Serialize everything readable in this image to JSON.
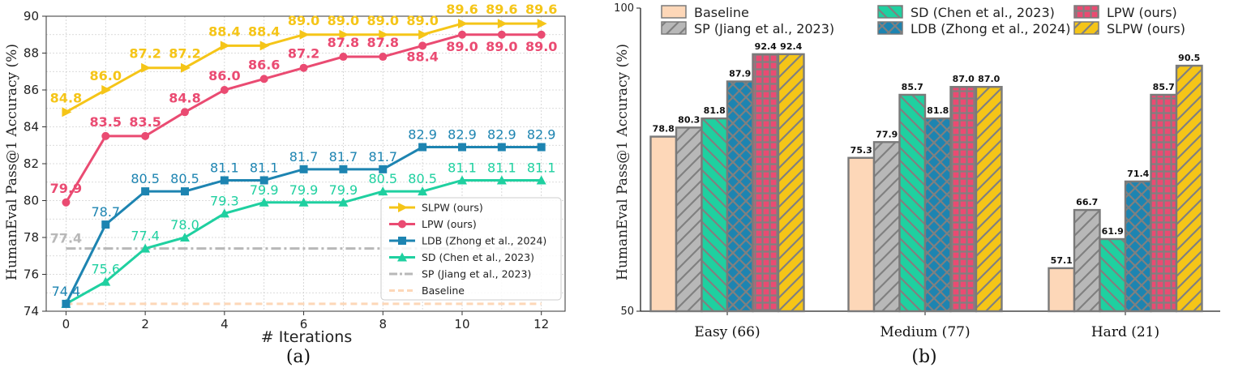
{
  "chart_data": [
    {
      "type": "line",
      "caption": "(a)",
      "xlabel": "# Iterations",
      "ylabel": "HumanEval Pass@1 Accuracy (%)",
      "xlim": [
        -0.5,
        12.6
      ],
      "ylim": [
        74,
        90
      ],
      "xticks": [
        "0",
        "2",
        "4",
        "6",
        "8",
        "10",
        "12"
      ],
      "yticks": [
        "74",
        "76",
        "78",
        "80",
        "82",
        "84",
        "86",
        "88",
        "90"
      ],
      "grid": true,
      "legend_position": "lower-right",
      "x": [
        0,
        1,
        2,
        3,
        4,
        5,
        6,
        7,
        8,
        9,
        10,
        11,
        12
      ],
      "series": [
        {
          "name": "SLPW (ours)",
          "color": "#f5c518",
          "marker": "arrow-right",
          "bold_labels": true,
          "values": [
            84.8,
            86.0,
            87.2,
            87.2,
            88.4,
            88.4,
            89.0,
            89.0,
            89.0,
            89.0,
            89.6,
            89.6,
            89.6
          ],
          "labels": [
            "84.8",
            "86.0",
            "87.2",
            "87.2",
            "88.4",
            "88.4",
            "89.0",
            "89.0",
            "89.0",
            "89.0",
            "89.6",
            "89.6",
            "89.6"
          ]
        },
        {
          "name": "LPW (ours)",
          "color": "#ea4b72",
          "marker": "circle",
          "bold_labels": true,
          "values": [
            79.9,
            83.5,
            83.5,
            84.8,
            86.0,
            86.6,
            87.2,
            87.8,
            87.8,
            88.4,
            89.0,
            89.0,
            89.0
          ],
          "labels": [
            "79.9",
            "83.5",
            "83.5",
            "84.8",
            "86.0",
            "86.6",
            "87.2",
            "87.8",
            "87.8",
            "88.4",
            "89.0",
            "89.0",
            "89.0"
          ]
        },
        {
          "name": "LDB (Zhong et al., 2024)",
          "color": "#1d84b1",
          "marker": "square",
          "bold_labels": false,
          "values": [
            74.4,
            78.7,
            80.5,
            80.5,
            81.1,
            81.1,
            81.7,
            81.7,
            81.7,
            82.9,
            82.9,
            82.9,
            82.9
          ],
          "labels": [
            "74.4",
            "78.7",
            "80.5",
            "80.5",
            "81.1",
            "81.1",
            "81.7",
            "81.7",
            "81.7",
            "82.9",
            "82.9",
            "82.9",
            "82.9"
          ]
        },
        {
          "name": "SD (Chen et al., 2023)",
          "color": "#1fd0a0",
          "marker": "triangle",
          "bold_labels": false,
          "values": [
            74.4,
            75.6,
            77.4,
            78.0,
            79.3,
            79.9,
            79.9,
            79.9,
            80.5,
            80.5,
            81.1,
            81.1,
            81.1
          ],
          "labels": [
            "",
            "75.6",
            "77.4",
            "78.0",
            "79.3",
            "79.9",
            "79.9",
            "79.9",
            "80.5",
            "80.5",
            "81.1",
            "81.1",
            "81.1"
          ]
        },
        {
          "name": "SP (Jiang et al., 2023)",
          "color": "#b8b8b8",
          "style": "dashdot",
          "value": 77.4,
          "label": "77.4"
        },
        {
          "name": "Baseline",
          "color": "#fdd7b8",
          "style": "dashed",
          "value": 74.4
        }
      ]
    },
    {
      "type": "bar",
      "caption": "(b)",
      "xlabel": "",
      "ylabel": "HumanEval Pass@1 Accuracy (%)",
      "ylim": [
        50,
        100
      ],
      "yticks": [
        "50",
        "100"
      ],
      "legend_position": "top",
      "categories": [
        "Easy (66)",
        "Medium (77)",
        "Hard (21)"
      ],
      "series": [
        {
          "name": "Baseline",
          "color": "#fdd7b8",
          "hatch": "none",
          "values": [
            78.8,
            75.3,
            57.1
          ],
          "labels": [
            "78.8",
            "75.3",
            "57.1"
          ]
        },
        {
          "name": "SP (Jiang et al., 2023)",
          "color": "#b8b8b8",
          "hatch": "diagonal",
          "values": [
            80.3,
            77.9,
            66.7
          ],
          "labels": [
            "80.3",
            "77.9",
            "66.7"
          ]
        },
        {
          "name": "SD (Chen et al., 2023)",
          "color": "#1fd0a0",
          "hatch": "backslash",
          "values": [
            81.8,
            85.7,
            61.9
          ],
          "labels": [
            "81.8",
            "85.7",
            "61.9"
          ]
        },
        {
          "name": "LDB (Zhong et al., 2024)",
          "color": "#1d84b1",
          "hatch": "cross",
          "values": [
            87.9,
            81.8,
            71.4
          ],
          "labels": [
            "87.9",
            "81.8",
            "71.4"
          ]
        },
        {
          "name": "LPW (ours)",
          "color": "#ea4b72",
          "hatch": "grid",
          "values": [
            92.4,
            87.0,
            85.7
          ],
          "labels": [
            "92.4",
            "87.0",
            "85.7"
          ]
        },
        {
          "name": "SLPW (ours)",
          "color": "#f5c518",
          "hatch": "diagonal",
          "values": [
            92.4,
            87.0,
            90.5
          ],
          "labels": [
            "92.4",
            "87.0",
            "90.5"
          ]
        }
      ]
    }
  ]
}
